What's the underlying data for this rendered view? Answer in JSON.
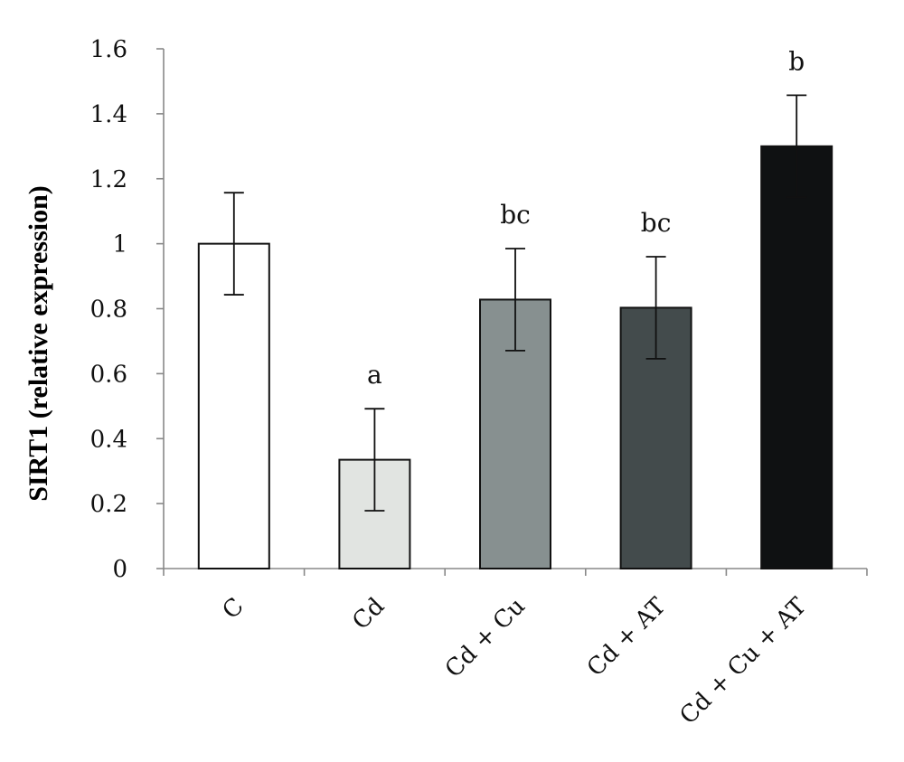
{
  "chart_data": {
    "type": "bar",
    "title": "",
    "xlabel": "",
    "ylabel": "SIRT1 (relative expression)",
    "ylim": [
      0,
      1.6
    ],
    "yticks": [
      0,
      0.2,
      0.4,
      0.6,
      0.8,
      1,
      1.2,
      1.4,
      1.6
    ],
    "ytick_labels": [
      "0",
      "0.2",
      "0.4",
      "0.6",
      "0.8",
      "1",
      "1.2",
      "1.4",
      "1.6"
    ],
    "grid": false,
    "legend": "none",
    "categories": [
      "C",
      "Cd",
      "Cd + Cu",
      "Cd + AT",
      "Cd + Cu + AT"
    ],
    "values": [
      1.0,
      0.335,
      0.828,
      0.803,
      1.3
    ],
    "errors": [
      0.157,
      0.157,
      0.157,
      0.157,
      0.157
    ],
    "annotations": [
      "",
      "a",
      "bc",
      "bc",
      "b"
    ],
    "colors": [
      "#ffffff",
      "#e1e4e1",
      "#879090",
      "#434b4c",
      "#0f1112"
    ]
  }
}
